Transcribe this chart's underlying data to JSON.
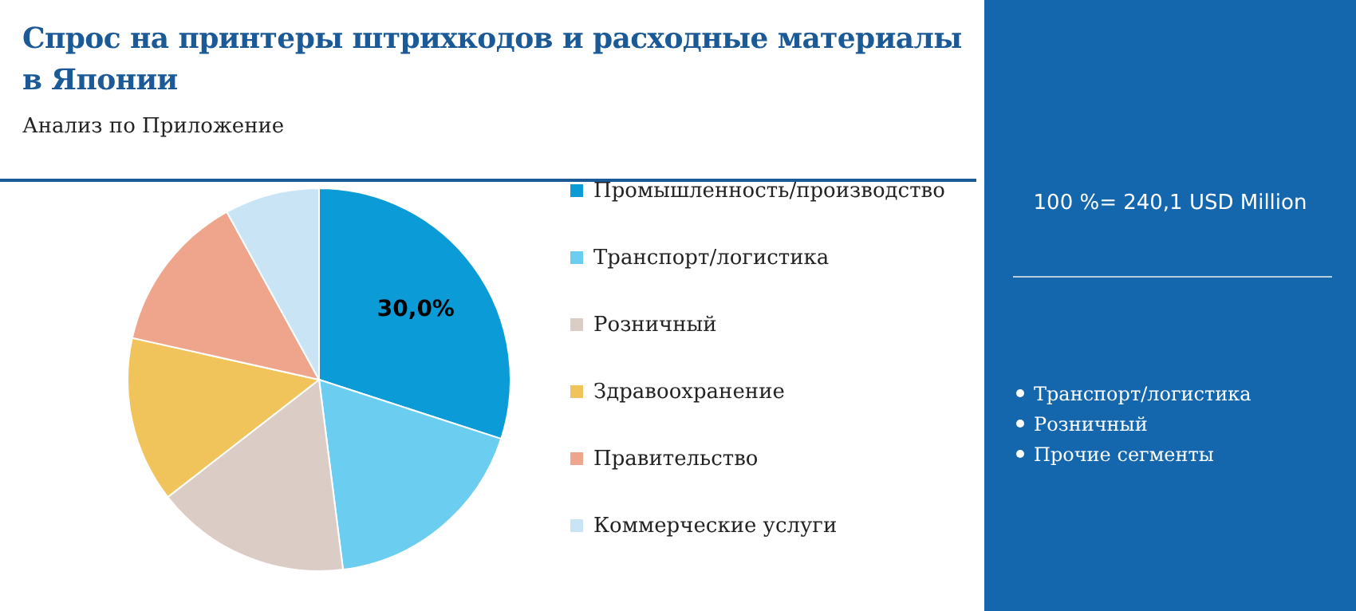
{
  "chart_data": {
    "type": "pie",
    "title": "Спрос на принтеры штрихкодов и расходные материалы в Японии",
    "subtitle": "Анализ по Приложение",
    "categories": [
      "Промышленность/производство",
      "Транспорт/логистика",
      "Розничный",
      "Здравоохранение",
      "Правительство",
      "Коммерческие услуги"
    ],
    "values": [
      30,
      18,
      16.5,
      14,
      13.5,
      8
    ],
    "colors": [
      "#0b9bd7",
      "#6bcdf0",
      "#dcccc6",
      "#f0c45a",
      "#eea58b",
      "#c9e4f4"
    ],
    "value_labels": [
      "30,0%",
      null,
      null,
      null,
      null,
      null
    ],
    "legend": "right",
    "annotations": [
      "100 %= 240,1 USD Million",
      "Транспорт/логистика",
      "Розничный",
      "Прочие сегменты"
    ]
  }
}
